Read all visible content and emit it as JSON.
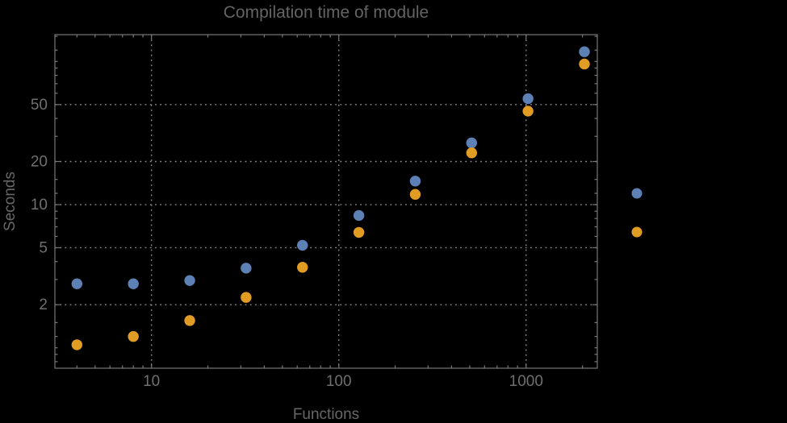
{
  "background_color": "#000000",
  "colors": {
    "frame": "#787878",
    "gridline": "#8c8c8c",
    "tick": "#787878",
    "text": "#6f6f6f",
    "series_blue": "#5e81b5",
    "series_orange": "#e19c24"
  },
  "chart_data": {
    "type": "scatter",
    "title": "Compilation time of module",
    "xlabel": "Functions",
    "ylabel": "Seconds",
    "x_scale": "log",
    "y_scale": "log",
    "xlim": [
      3.05,
      2400
    ],
    "ylim": [
      0.72,
      154
    ],
    "x_tick_labels": [
      10,
      100,
      1000
    ],
    "y_tick_labels": [
      2,
      5,
      10,
      20,
      50
    ],
    "grid": "dotted lines at labeled ticks only",
    "legend_position": "right-center, labels not visible (black on black)",
    "x": [
      4,
      8,
      16,
      32,
      64,
      128,
      256,
      512,
      1024,
      2048
    ],
    "series": [
      {
        "name": "blue-series",
        "color": "#5e81b5",
        "values": [
          2.8,
          2.8,
          2.95,
          3.6,
          5.2,
          8.4,
          14.6,
          27,
          55,
          117
        ]
      },
      {
        "name": "orange-series",
        "color": "#e19c24",
        "values": [
          1.05,
          1.2,
          1.55,
          2.25,
          3.65,
          6.4,
          11.8,
          23,
          45,
          96
        ]
      }
    ],
    "legend": {
      "labels_visible": false,
      "marker_colors": [
        "#5e81b5",
        "#e19c24"
      ]
    }
  }
}
